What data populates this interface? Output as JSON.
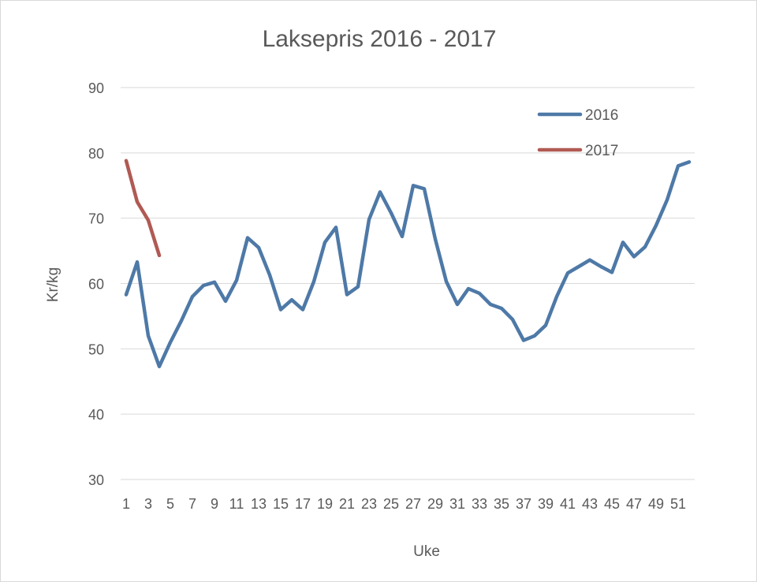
{
  "chart_data": {
    "type": "line",
    "title": "Laksepris 2016 - 2017",
    "xlabel": "Uke",
    "ylabel": "Kr/kg",
    "ylim": [
      30,
      90
    ],
    "yticks": [
      30,
      40,
      50,
      60,
      70,
      80,
      90
    ],
    "x": [
      1,
      2,
      3,
      4,
      5,
      6,
      7,
      8,
      9,
      10,
      11,
      12,
      13,
      14,
      15,
      16,
      17,
      18,
      19,
      20,
      21,
      22,
      23,
      24,
      25,
      26,
      27,
      28,
      29,
      30,
      31,
      32,
      33,
      34,
      35,
      36,
      37,
      38,
      39,
      40,
      41,
      42,
      43,
      44,
      45,
      46,
      47,
      48,
      49,
      50,
      51,
      52
    ],
    "xtick_labels": [
      "1",
      "3",
      "5",
      "7",
      "9",
      "11",
      "13",
      "15",
      "17",
      "19",
      "21",
      "23",
      "25",
      "27",
      "29",
      "31",
      "33",
      "35",
      "37",
      "39",
      "41",
      "43",
      "45",
      "47",
      "49",
      "51"
    ],
    "xtick_positions": [
      1,
      3,
      5,
      7,
      9,
      11,
      13,
      15,
      17,
      19,
      21,
      23,
      25,
      27,
      29,
      31,
      33,
      35,
      37,
      39,
      41,
      43,
      45,
      47,
      49,
      51
    ],
    "grid": true,
    "legend_position": "top-right",
    "series": [
      {
        "name": "2016",
        "color": "#4e79a7",
        "x": [
          1,
          2,
          3,
          4,
          5,
          6,
          7,
          8,
          9,
          10,
          11,
          12,
          13,
          14,
          15,
          16,
          17,
          18,
          19,
          20,
          21,
          22,
          23,
          24,
          25,
          26,
          27,
          28,
          29,
          30,
          31,
          32,
          33,
          34,
          35,
          36,
          37,
          38,
          39,
          40,
          41,
          42,
          43,
          44,
          45,
          46,
          47,
          48,
          49,
          50,
          51,
          52
        ],
        "values": [
          58.3,
          63.3,
          52.0,
          47.3,
          51.0,
          54.3,
          58.0,
          59.7,
          60.2,
          57.3,
          60.5,
          67.0,
          65.5,
          61.3,
          56.0,
          57.5,
          56.0,
          60.3,
          66.3,
          68.6,
          58.3,
          59.5,
          69.8,
          74.0,
          70.8,
          67.2,
          75.0,
          74.5,
          66.8,
          60.3,
          56.8,
          59.2,
          58.5,
          56.8,
          56.2,
          54.5,
          51.3,
          52.0,
          53.6,
          58.0,
          61.6,
          62.6,
          63.6,
          62.6,
          61.7,
          66.3,
          64.1,
          65.6,
          68.9,
          72.8,
          78.0,
          78.6
        ]
      },
      {
        "name": "2017",
        "color": "#b05a53",
        "x": [
          1,
          2,
          3,
          4
        ],
        "values": [
          78.8,
          72.5,
          69.7,
          64.3
        ]
      }
    ]
  }
}
